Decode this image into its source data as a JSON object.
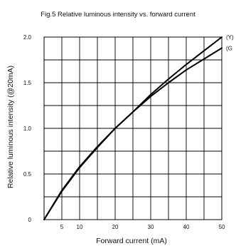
{
  "chart_data": {
    "type": "line",
    "title": "Fig.5 Relative luminous intensity vs. forward current",
    "xlabel": "Forward current (mA)",
    "ylabel": "Relative luminous intensity (@20mA)",
    "xlim": [
      0,
      50
    ],
    "ylim": [
      0,
      2.0
    ],
    "x_ticks": [
      5,
      10,
      20,
      30,
      40,
      50
    ],
    "x_tick_labels": [
      "5",
      "10",
      "20",
      "30",
      "40",
      "50"
    ],
    "x_grid": [
      5,
      10,
      15,
      20,
      25,
      30,
      35,
      40,
      45,
      50
    ],
    "y_ticks": [
      0,
      0.5,
      1.0,
      1.5,
      2.0
    ],
    "y_tick_labels": [
      "0",
      "0.5",
      "1.0",
      "1.5",
      "2.0"
    ],
    "y_grid": [
      0.25,
      0.5,
      0.75,
      1.0,
      1.25,
      1.5,
      1.75,
      2.0
    ],
    "grid": true,
    "series": [
      {
        "name": "(Y)",
        "color": "#000000",
        "x": [
          0,
          5,
          10,
          15,
          20,
          25,
          30,
          35,
          40,
          45,
          50
        ],
        "y": [
          0,
          0.32,
          0.58,
          0.8,
          1.0,
          1.18,
          1.37,
          1.54,
          1.7,
          1.85,
          2.0
        ]
      },
      {
        "name": "(G",
        "color": "#000000",
        "x": [
          0,
          5,
          10,
          15,
          20,
          25,
          30,
          35,
          40,
          45,
          50
        ],
        "y": [
          0,
          0.31,
          0.57,
          0.79,
          1.0,
          1.18,
          1.35,
          1.5,
          1.64,
          1.76,
          1.88
        ]
      }
    ]
  }
}
